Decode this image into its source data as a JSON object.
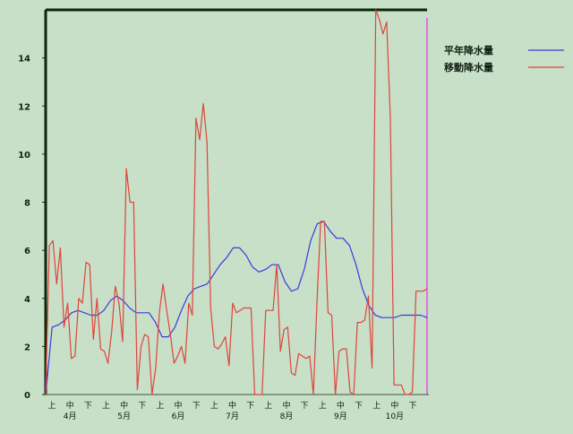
{
  "chart_data": {
    "type": "line",
    "title": "",
    "xlabel": "",
    "ylabel": "",
    "ylim": [
      0,
      16
    ],
    "yticks": [
      0,
      2,
      4,
      6,
      8,
      10,
      12,
      14
    ],
    "grid": false,
    "legend_position": "top-right",
    "x_period_labels": [
      "上",
      "中",
      "下",
      "上",
      "中",
      "下",
      "上",
      "中",
      "下",
      "上",
      "中",
      "下",
      "上",
      "中",
      "下",
      "上",
      "中",
      "下",
      "上",
      "中",
      "下"
    ],
    "x_month_labels": [
      "4月",
      "5月",
      "6月",
      "7月",
      "8月",
      "9月",
      "10月"
    ],
    "series": [
      {
        "name": "平年降水量",
        "color": "#3a3ae0",
        "values": [
          0.0,
          2.8,
          2.9,
          3.1,
          3.4,
          3.5,
          3.4,
          3.3,
          3.3,
          3.5,
          3.9,
          4.1,
          3.9,
          3.6,
          3.4,
          3.4,
          3.4,
          3.0,
          2.4,
          2.4,
          2.8,
          3.5,
          4.1,
          4.4,
          4.5,
          4.6,
          5.0,
          5.4,
          5.7,
          6.1,
          6.1,
          5.8,
          5.3,
          5.1,
          5.2,
          5.4,
          5.4,
          4.7,
          4.3,
          4.4,
          5.2,
          6.4,
          7.1,
          7.2,
          6.8,
          6.5,
          6.5,
          6.2,
          5.4,
          4.4,
          3.7,
          3.3,
          3.2,
          3.2,
          3.2,
          3.3,
          3.3,
          3.3,
          3.3,
          3.2
        ]
      },
      {
        "name": "移動降水量",
        "color": "#e0443a",
        "values": [
          0.0,
          6.2,
          6.4,
          4.6,
          6.1,
          2.8,
          3.8,
          1.5,
          1.6,
          4.0,
          3.8,
          5.5,
          5.4,
          2.3,
          4.0,
          1.9,
          1.8,
          1.3,
          2.6,
          4.5,
          3.8,
          2.2,
          9.4,
          8.0,
          8.0,
          0.2,
          2.0,
          2.5,
          2.4,
          0.0,
          1.1,
          3.4,
          4.6,
          3.5,
          2.5,
          1.3,
          1.6,
          2.0,
          1.3,
          3.8,
          3.3,
          11.5,
          10.6,
          12.1,
          10.5,
          3.6,
          2.0,
          1.9,
          2.1,
          2.4,
          1.2,
          3.8,
          3.4,
          3.5,
          3.6,
          3.6,
          3.6,
          0.0,
          0.0,
          0.0,
          3.5,
          3.5,
          3.5,
          5.4,
          1.8,
          2.7,
          2.8,
          0.9,
          0.8,
          1.7,
          1.6,
          1.5,
          1.6,
          0.0,
          3.9,
          7.2,
          7.2,
          3.4,
          3.3,
          0.0,
          1.8,
          1.9,
          1.9,
          0.1,
          0.0,
          3.0,
          3.0,
          3.1,
          4.1,
          1.1,
          16.0,
          15.6,
          15.0,
          15.5,
          11.5,
          0.4,
          0.4,
          0.4,
          0.0,
          0.0,
          0.1,
          4.3,
          4.3,
          4.3,
          4.4
        ]
      }
    ]
  }
}
